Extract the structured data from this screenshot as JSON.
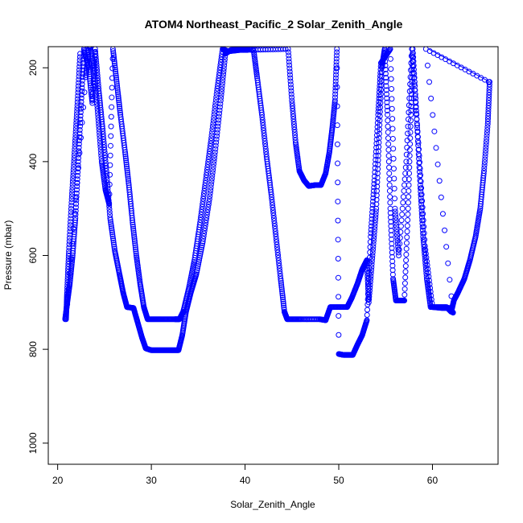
{
  "chart_data": {
    "type": "scatter",
    "title": "ATOM4 Northeast_Pacific_2 Solar_Zenith_Angle",
    "xlabel": "Solar_Zenith_Angle",
    "ylabel": "Pressure (mbar)",
    "xlim": [
      19,
      67
    ],
    "ylim": [
      1045,
      155
    ],
    "y_inverted": true,
    "x_ticks": [
      20,
      30,
      40,
      50,
      60
    ],
    "y_ticks": [
      200,
      400,
      600,
      800,
      1000
    ],
    "grid": false,
    "legend": "none",
    "marker": "open-circle",
    "color": "#0000ff",
    "series": [
      {
        "values": [
          [
            20.8,
            736
          ],
          [
            21.0,
            705
          ],
          [
            21.3,
            660
          ],
          [
            21.6,
            600
          ],
          [
            21.9,
            520
          ],
          [
            22.2,
            400
          ],
          [
            22.5,
            280
          ],
          [
            22.8,
            160
          ],
          [
            23.3,
            200
          ],
          [
            23.7,
            275
          ],
          [
            24.0,
            160
          ],
          [
            24.4,
            250
          ],
          [
            24.8,
            330
          ],
          [
            25.2,
            420
          ],
          [
            25.6,
            520
          ],
          [
            26.1,
            590
          ],
          [
            26.6,
            640
          ],
          [
            27.0,
            680
          ],
          [
            27.4,
            710
          ],
          [
            28.1,
            712
          ],
          [
            28.5,
            740
          ],
          [
            29.0,
            775
          ],
          [
            29.4,
            798
          ],
          [
            30.0,
            802
          ],
          [
            31.0,
            802
          ],
          [
            32.0,
            802
          ],
          [
            32.9,
            802
          ],
          [
            33.3,
            770
          ],
          [
            33.7,
            720
          ],
          [
            34.2,
            680
          ],
          [
            34.8,
            640
          ],
          [
            35.5,
            570
          ],
          [
            36.2,
            480
          ],
          [
            36.8,
            380
          ],
          [
            37.4,
            270
          ],
          [
            37.9,
            170
          ],
          [
            38.5,
            162
          ],
          [
            40.9,
            160
          ],
          [
            41.3,
            222
          ],
          [
            41.8,
            300
          ],
          [
            42.3,
            390
          ],
          [
            42.8,
            470
          ],
          [
            43.3,
            560
          ],
          [
            43.8,
            650
          ],
          [
            44.2,
            720
          ],
          [
            44.5,
            736
          ],
          [
            46.0,
            736
          ],
          [
            48.0,
            736
          ],
          [
            48.6,
            738
          ],
          [
            49.1,
            710
          ],
          [
            50.9,
            710
          ],
          [
            51.4,
            690
          ],
          [
            52.0,
            660
          ],
          [
            52.5,
            630
          ],
          [
            53.0,
            610
          ],
          [
            53.2,
            700
          ],
          [
            53.6,
            600
          ],
          [
            54.0,
            500
          ],
          [
            54.3,
            350
          ],
          [
            54.6,
            200
          ],
          [
            54.9,
            160
          ],
          [
            55.2,
            300
          ],
          [
            55.5,
            500
          ],
          [
            55.8,
            650
          ],
          [
            56.1,
            696
          ],
          [
            57.0,
            696
          ],
          [
            57.4,
            500
          ],
          [
            57.7,
            300
          ],
          [
            57.9,
            160
          ],
          [
            58.3,
            300
          ],
          [
            58.7,
            450
          ],
          [
            59.0,
            560
          ],
          [
            59.4,
            650
          ],
          [
            59.8,
            710
          ],
          [
            61.5,
            710
          ],
          [
            62.0,
            720
          ],
          [
            62.3,
            695
          ],
          [
            62.7,
            680
          ],
          [
            63.4,
            650
          ],
          [
            64.0,
            610
          ],
          [
            64.6,
            560
          ],
          [
            65.1,
            500
          ],
          [
            65.5,
            420
          ],
          [
            65.9,
            320
          ],
          [
            66.1,
            230
          ]
        ]
      },
      {
        "values": [
          [
            22.4,
            170
          ],
          [
            22.1,
            280
          ],
          [
            21.8,
            380
          ],
          [
            21.5,
            480
          ],
          [
            21.2,
            590
          ],
          [
            21.0,
            680
          ],
          [
            20.9,
            736
          ],
          [
            23.0,
            220
          ],
          [
            23.4,
            150
          ],
          [
            23.9,
            200
          ],
          [
            24.3,
            300
          ],
          [
            24.7,
            400
          ],
          [
            25.1,
            460
          ],
          [
            25.5,
            490
          ],
          [
            25.9,
            160
          ],
          [
            26.3,
            230
          ],
          [
            26.7,
            300
          ],
          [
            27.2,
            380
          ],
          [
            27.6,
            450
          ],
          [
            28.0,
            530
          ],
          [
            28.4,
            600
          ],
          [
            28.8,
            660
          ],
          [
            29.2,
            710
          ],
          [
            29.6,
            736
          ],
          [
            31.0,
            736
          ],
          [
            32.5,
            736
          ],
          [
            33.0,
            736
          ],
          [
            33.4,
            720
          ],
          [
            34.0,
            670
          ],
          [
            34.6,
            610
          ],
          [
            35.2,
            530
          ],
          [
            35.8,
            440
          ],
          [
            36.4,
            350
          ],
          [
            37.0,
            250
          ],
          [
            37.6,
            160
          ],
          [
            38.2,
            165
          ],
          [
            39.5,
            162
          ],
          [
            40.3,
            162
          ],
          [
            44.6,
            160
          ],
          [
            45.0,
            270
          ],
          [
            45.4,
            360
          ],
          [
            45.8,
            420
          ],
          [
            46.3,
            440
          ],
          [
            46.8,
            452
          ],
          [
            47.5,
            450
          ],
          [
            48.1,
            450
          ],
          [
            48.6,
            425
          ],
          [
            49.0,
            380
          ],
          [
            49.3,
            330
          ],
          [
            49.6,
            270
          ],
          [
            49.8,
            160
          ],
          [
            50.0,
            810
          ],
          [
            50.5,
            812
          ],
          [
            51.0,
            812
          ],
          [
            51.5,
            812
          ],
          [
            52.0,
            790
          ],
          [
            52.5,
            770
          ],
          [
            53.0,
            738
          ],
          [
            53.4,
            560
          ],
          [
            53.8,
            440
          ],
          [
            54.2,
            300
          ],
          [
            54.5,
            190
          ],
          [
            55.5,
            160
          ],
          [
            56.0,
            500
          ],
          [
            56.4,
            600
          ],
          [
            57.2,
            400
          ],
          [
            57.8,
            160
          ],
          [
            58.5,
            360
          ],
          [
            59.2,
            580
          ],
          [
            60.0,
            710
          ],
          [
            61.0,
            712
          ],
          [
            61.8,
            712
          ],
          [
            62.2,
            722
          ],
          [
            59.3,
            160
          ],
          [
            66.0,
            230
          ]
        ]
      }
    ]
  }
}
